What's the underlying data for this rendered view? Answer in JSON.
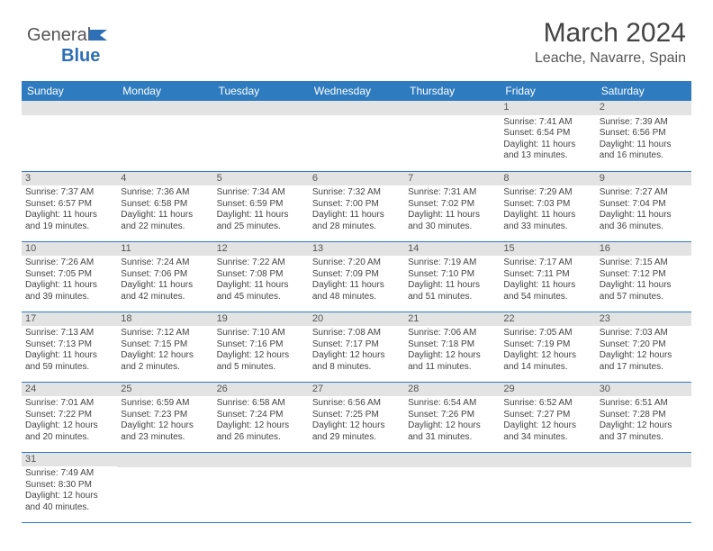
{
  "logo": {
    "text1": "General",
    "text2": "Blue"
  },
  "header": {
    "month_title": "March 2024",
    "location": "Leache, Navarre, Spain"
  },
  "colors": {
    "header_bg": "#2e7bbf",
    "header_text": "#ffffff",
    "daynum_bg": "#e3e3e3",
    "row_border": "#2e7bbf",
    "text": "#444444",
    "logo_blue": "#2e6fb5"
  },
  "weekdays": [
    "Sunday",
    "Monday",
    "Tuesday",
    "Wednesday",
    "Thursday",
    "Friday",
    "Saturday"
  ],
  "weeks": [
    [
      null,
      null,
      null,
      null,
      null,
      {
        "n": "1",
        "sunrise": "Sunrise: 7:41 AM",
        "sunset": "Sunset: 6:54 PM",
        "daylight": "Daylight: 11 hours and 13 minutes."
      },
      {
        "n": "2",
        "sunrise": "Sunrise: 7:39 AM",
        "sunset": "Sunset: 6:56 PM",
        "daylight": "Daylight: 11 hours and 16 minutes."
      }
    ],
    [
      {
        "n": "3",
        "sunrise": "Sunrise: 7:37 AM",
        "sunset": "Sunset: 6:57 PM",
        "daylight": "Daylight: 11 hours and 19 minutes."
      },
      {
        "n": "4",
        "sunrise": "Sunrise: 7:36 AM",
        "sunset": "Sunset: 6:58 PM",
        "daylight": "Daylight: 11 hours and 22 minutes."
      },
      {
        "n": "5",
        "sunrise": "Sunrise: 7:34 AM",
        "sunset": "Sunset: 6:59 PM",
        "daylight": "Daylight: 11 hours and 25 minutes."
      },
      {
        "n": "6",
        "sunrise": "Sunrise: 7:32 AM",
        "sunset": "Sunset: 7:00 PM",
        "daylight": "Daylight: 11 hours and 28 minutes."
      },
      {
        "n": "7",
        "sunrise": "Sunrise: 7:31 AM",
        "sunset": "Sunset: 7:02 PM",
        "daylight": "Daylight: 11 hours and 30 minutes."
      },
      {
        "n": "8",
        "sunrise": "Sunrise: 7:29 AM",
        "sunset": "Sunset: 7:03 PM",
        "daylight": "Daylight: 11 hours and 33 minutes."
      },
      {
        "n": "9",
        "sunrise": "Sunrise: 7:27 AM",
        "sunset": "Sunset: 7:04 PM",
        "daylight": "Daylight: 11 hours and 36 minutes."
      }
    ],
    [
      {
        "n": "10",
        "sunrise": "Sunrise: 7:26 AM",
        "sunset": "Sunset: 7:05 PM",
        "daylight": "Daylight: 11 hours and 39 minutes."
      },
      {
        "n": "11",
        "sunrise": "Sunrise: 7:24 AM",
        "sunset": "Sunset: 7:06 PM",
        "daylight": "Daylight: 11 hours and 42 minutes."
      },
      {
        "n": "12",
        "sunrise": "Sunrise: 7:22 AM",
        "sunset": "Sunset: 7:08 PM",
        "daylight": "Daylight: 11 hours and 45 minutes."
      },
      {
        "n": "13",
        "sunrise": "Sunrise: 7:20 AM",
        "sunset": "Sunset: 7:09 PM",
        "daylight": "Daylight: 11 hours and 48 minutes."
      },
      {
        "n": "14",
        "sunrise": "Sunrise: 7:19 AM",
        "sunset": "Sunset: 7:10 PM",
        "daylight": "Daylight: 11 hours and 51 minutes."
      },
      {
        "n": "15",
        "sunrise": "Sunrise: 7:17 AM",
        "sunset": "Sunset: 7:11 PM",
        "daylight": "Daylight: 11 hours and 54 minutes."
      },
      {
        "n": "16",
        "sunrise": "Sunrise: 7:15 AM",
        "sunset": "Sunset: 7:12 PM",
        "daylight": "Daylight: 11 hours and 57 minutes."
      }
    ],
    [
      {
        "n": "17",
        "sunrise": "Sunrise: 7:13 AM",
        "sunset": "Sunset: 7:13 PM",
        "daylight": "Daylight: 11 hours and 59 minutes."
      },
      {
        "n": "18",
        "sunrise": "Sunrise: 7:12 AM",
        "sunset": "Sunset: 7:15 PM",
        "daylight": "Daylight: 12 hours and 2 minutes."
      },
      {
        "n": "19",
        "sunrise": "Sunrise: 7:10 AM",
        "sunset": "Sunset: 7:16 PM",
        "daylight": "Daylight: 12 hours and 5 minutes."
      },
      {
        "n": "20",
        "sunrise": "Sunrise: 7:08 AM",
        "sunset": "Sunset: 7:17 PM",
        "daylight": "Daylight: 12 hours and 8 minutes."
      },
      {
        "n": "21",
        "sunrise": "Sunrise: 7:06 AM",
        "sunset": "Sunset: 7:18 PM",
        "daylight": "Daylight: 12 hours and 11 minutes."
      },
      {
        "n": "22",
        "sunrise": "Sunrise: 7:05 AM",
        "sunset": "Sunset: 7:19 PM",
        "daylight": "Daylight: 12 hours and 14 minutes."
      },
      {
        "n": "23",
        "sunrise": "Sunrise: 7:03 AM",
        "sunset": "Sunset: 7:20 PM",
        "daylight": "Daylight: 12 hours and 17 minutes."
      }
    ],
    [
      {
        "n": "24",
        "sunrise": "Sunrise: 7:01 AM",
        "sunset": "Sunset: 7:22 PM",
        "daylight": "Daylight: 12 hours and 20 minutes."
      },
      {
        "n": "25",
        "sunrise": "Sunrise: 6:59 AM",
        "sunset": "Sunset: 7:23 PM",
        "daylight": "Daylight: 12 hours and 23 minutes."
      },
      {
        "n": "26",
        "sunrise": "Sunrise: 6:58 AM",
        "sunset": "Sunset: 7:24 PM",
        "daylight": "Daylight: 12 hours and 26 minutes."
      },
      {
        "n": "27",
        "sunrise": "Sunrise: 6:56 AM",
        "sunset": "Sunset: 7:25 PM",
        "daylight": "Daylight: 12 hours and 29 minutes."
      },
      {
        "n": "28",
        "sunrise": "Sunrise: 6:54 AM",
        "sunset": "Sunset: 7:26 PM",
        "daylight": "Daylight: 12 hours and 31 minutes."
      },
      {
        "n": "29",
        "sunrise": "Sunrise: 6:52 AM",
        "sunset": "Sunset: 7:27 PM",
        "daylight": "Daylight: 12 hours and 34 minutes."
      },
      {
        "n": "30",
        "sunrise": "Sunrise: 6:51 AM",
        "sunset": "Sunset: 7:28 PM",
        "daylight": "Daylight: 12 hours and 37 minutes."
      }
    ],
    [
      {
        "n": "31",
        "sunrise": "Sunrise: 7:49 AM",
        "sunset": "Sunset: 8:30 PM",
        "daylight": "Daylight: 12 hours and 40 minutes."
      },
      null,
      null,
      null,
      null,
      null,
      null
    ]
  ]
}
